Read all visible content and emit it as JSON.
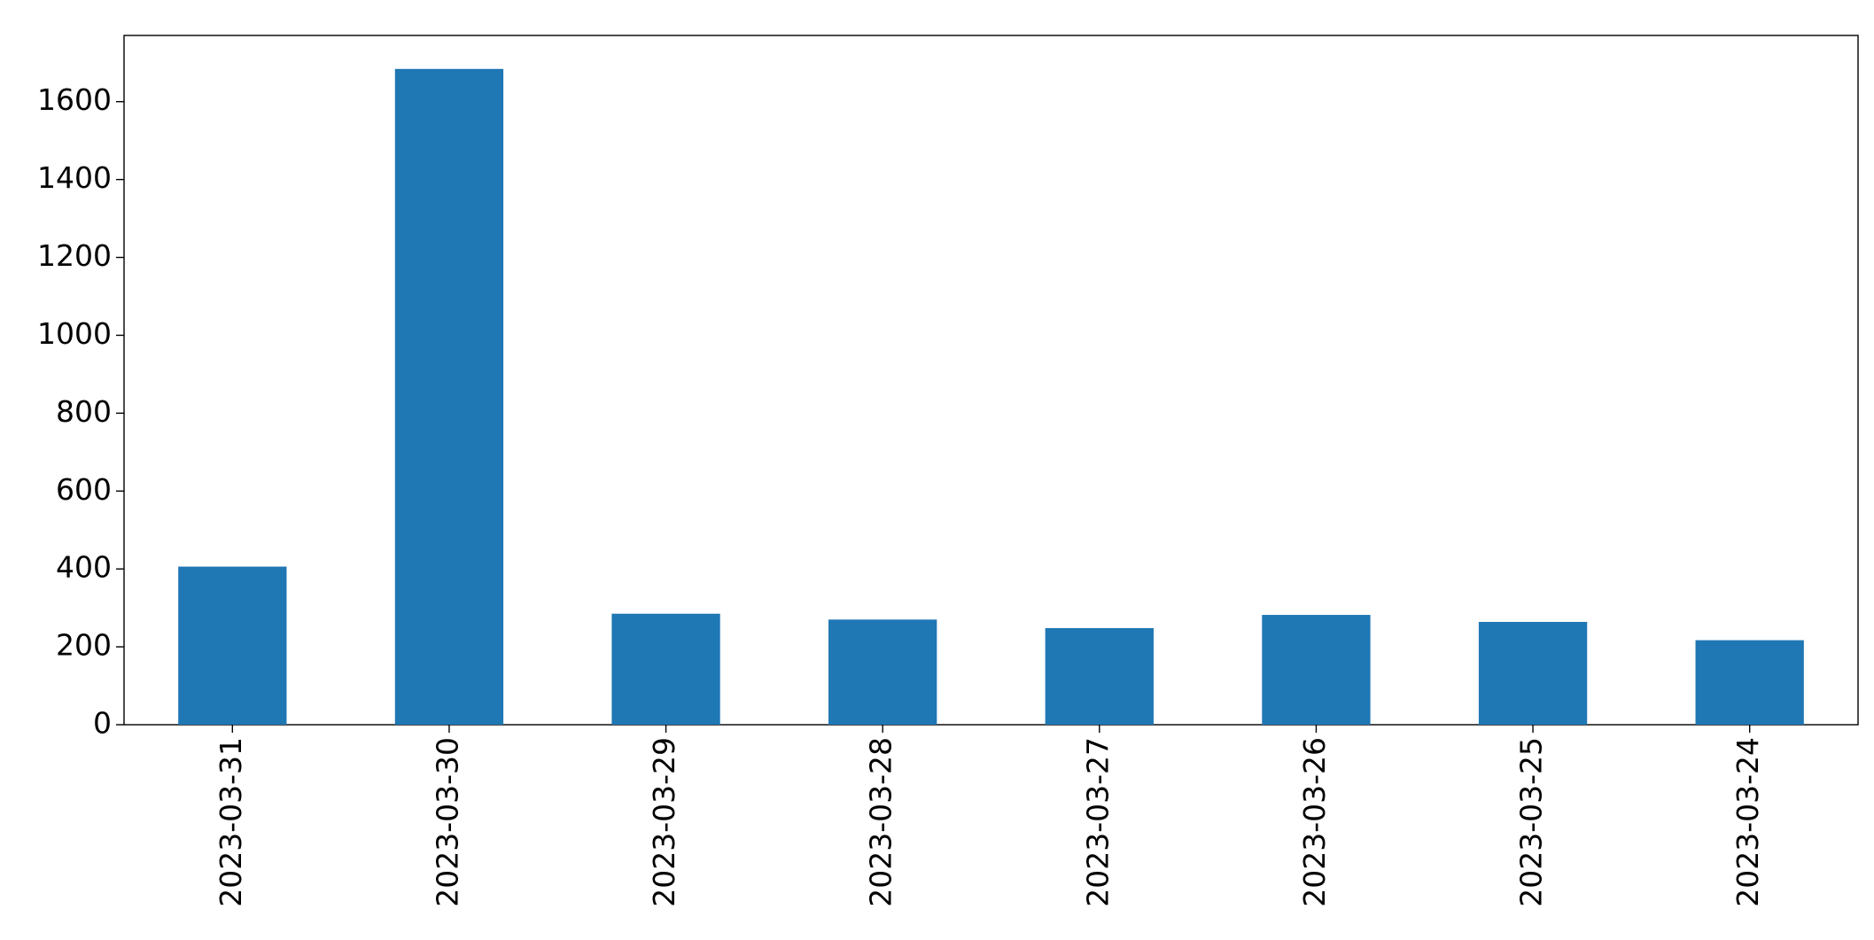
{
  "chart_data": {
    "type": "bar",
    "categories": [
      "2023-03-31",
      "2023-03-30",
      "2023-03-29",
      "2023-03-28",
      "2023-03-27",
      "2023-03-26",
      "2023-03-25",
      "2023-03-24"
    ],
    "values": [
      406,
      1684,
      285,
      270,
      248,
      282,
      264,
      217
    ],
    "color": "#1f77b4",
    "ylim": [
      0,
      1770
    ],
    "yticks": [
      0,
      200,
      400,
      600,
      800,
      1000,
      1200,
      1400,
      1600
    ],
    "grid": false
  }
}
